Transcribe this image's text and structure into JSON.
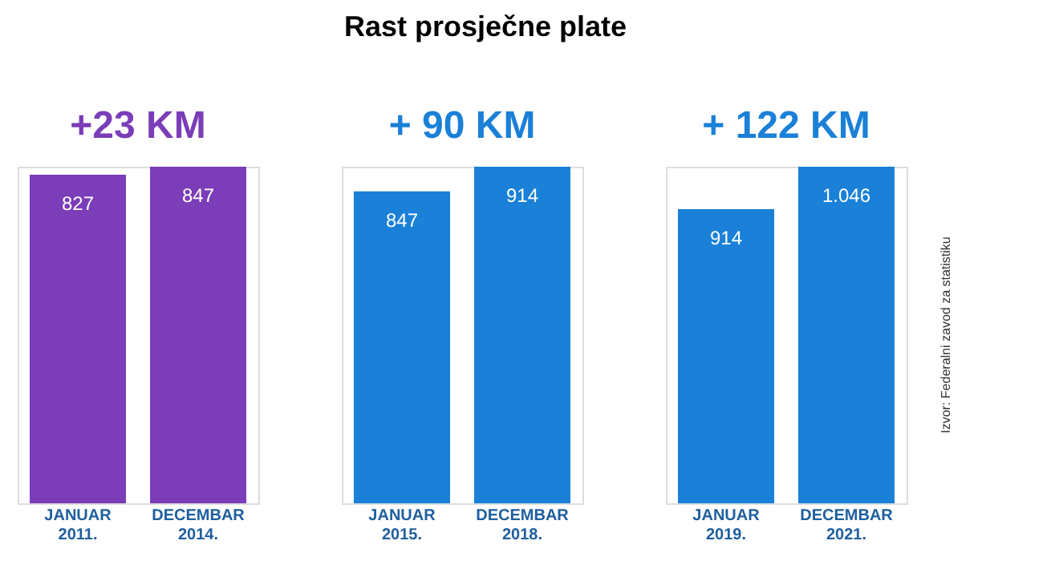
{
  "chart_data": [
    {
      "type": "bar",
      "subtitle": "+23 KM",
      "categories": [
        "JANUAR 2011.",
        "DECEMBAR 2014."
      ],
      "values": [
        827,
        847
      ],
      "value_labels": [
        "827",
        "847"
      ],
      "color": "#7b3db8"
    },
    {
      "type": "bar",
      "title": "Rast prosječne plate",
      "subtitle": "+ 90 KM",
      "categories": [
        "JANUAR 2015.",
        "DECEMBAR 2018."
      ],
      "values": [
        847,
        914
      ],
      "value_labels": [
        "847",
        "914"
      ],
      "color": "#1a80d8"
    },
    {
      "type": "bar",
      "subtitle": "+ 122 KM",
      "categories": [
        "JANUAR 2019.",
        "DECEMBAR 2021."
      ],
      "values": [
        914,
        1046
      ],
      "value_labels": [
        "914",
        "1.046"
      ],
      "color": "#1a80d8",
      "annotations": [
        "Izvor: Federalni zavod za statistiku"
      ]
    }
  ]
}
